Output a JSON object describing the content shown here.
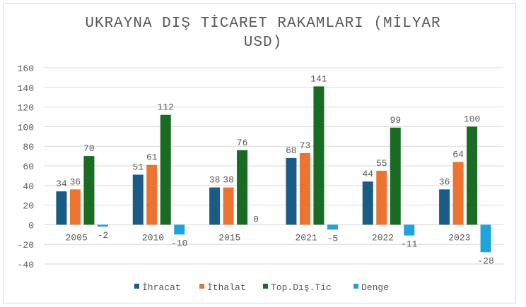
{
  "chart_data": {
    "type": "bar",
    "title": "UKRAYNA DIŞ TİCARET RAKAMLARI (MİLYAR USD)",
    "title_lines": [
      "UKRAYNA DIŞ TİCARET RAKAMLARI (MİLYAR",
      "USD)"
    ],
    "categories": [
      "2005",
      "2010",
      "2015",
      "2021",
      "2022",
      "2023"
    ],
    "series": [
      {
        "name": "İhracat",
        "color": "#1a5c85",
        "values": [
          34,
          51,
          38,
          68,
          44,
          36
        ]
      },
      {
        "name": "İthalat",
        "color": "#ed7331",
        "values": [
          36,
          61,
          38,
          73,
          55,
          64
        ]
      },
      {
        "name": "Top.Dış.Tic",
        "color": "#1a6b24",
        "values": [
          70,
          112,
          76,
          141,
          99,
          100
        ]
      },
      {
        "name": "Denge",
        "color": "#1fa3dd",
        "values": [
          -2,
          -10,
          0,
          -5,
          -11,
          -28
        ]
      }
    ],
    "ylim": [
      -40,
      160
    ],
    "yticks": [
      -40,
      -20,
      0,
      20,
      40,
      60,
      80,
      100,
      120,
      140,
      160
    ],
    "grid": true,
    "legend": "bottom",
    "data_labels": true
  }
}
